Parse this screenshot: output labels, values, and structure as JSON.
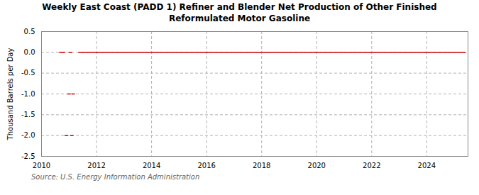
{
  "chart_data": {
    "type": "line",
    "title": "Weekly East Coast (PADD 1) Refiner and Blender Net Production of Other Finished\nReformulated Motor Gasoline",
    "ylabel": "Thousand Barrels per Day",
    "source": "Source: U.S. Energy Information Administration",
    "color": "#cc0000",
    "xlim": [
      2010,
      2025.5
    ],
    "ylim": [
      -2.5,
      0.5
    ],
    "xticks": [
      2010,
      2012,
      2014,
      2016,
      2018,
      2020,
      2022,
      2024
    ],
    "yticks": [
      0.5,
      {
        "value": 0.0,
        "label": "0.0"
      },
      -0.5,
      {
        "value": -1.0,
        "label": "-1.0"
      },
      -1.5,
      {
        "value": -2.0,
        "label": "-2.0"
      },
      -2.5
    ],
    "grid": true,
    "segments": [
      {
        "x": [
          2010.65,
          2010.85
        ],
        "values": [
          0.0,
          0.0
        ]
      },
      {
        "x": [
          2011.0,
          2011.1
        ],
        "values": [
          0.0,
          0.0
        ]
      },
      {
        "x": [
          2011.35,
          2025.4
        ],
        "values": [
          0.0,
          0.0
        ]
      },
      {
        "x": [
          2010.95,
          2011.05
        ],
        "values": [
          -1.0,
          -1.0
        ]
      },
      {
        "x": [
          2011.1,
          2011.2
        ],
        "values": [
          -1.0,
          -1.0
        ]
      },
      {
        "x": [
          2010.85,
          2010.95
        ],
        "values": [
          -2.0,
          -2.0
        ]
      },
      {
        "x": [
          2011.05,
          2011.15
        ],
        "values": [
          -2.0,
          -2.0
        ]
      }
    ]
  }
}
